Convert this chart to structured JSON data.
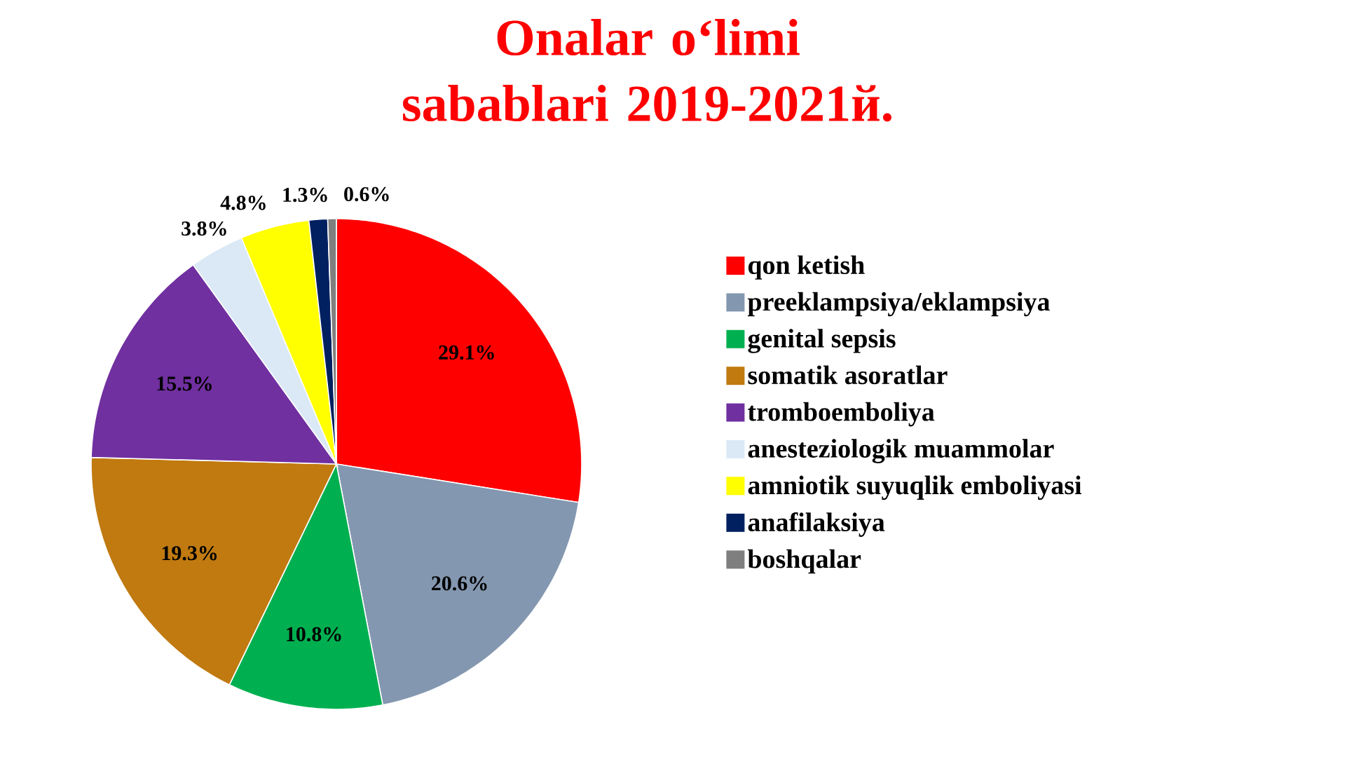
{
  "chart_data": {
    "type": "pie",
    "title": "Onalar o‘limi sabablari 2019-2021й.",
    "categories": [
      "qon ketish",
      "preeklampsiya/eklampsiya",
      "genital sepsis",
      "somatik asoratlar",
      "tromboemboliya",
      "anesteziologik muammolar",
      "amniotik suyuqlik emboliyasi",
      "anafilaksiya",
      "boshqalar"
    ],
    "values": [
      29.1,
      20.6,
      10.8,
      19.3,
      15.5,
      3.8,
      4.8,
      1.3,
      0.6
    ],
    "value_labels": [
      "29.1%",
      "20.6%",
      "10.8%",
      "19.3%",
      "15.5%",
      "3.8%",
      "4.8%",
      "1.3%",
      "0.6%"
    ],
    "colors": [
      "#ff0000",
      "#8497b0",
      "#00b050",
      "#c07a10",
      "#7030a0",
      "#dae9f5",
      "#ffff00",
      "#002060",
      "#7f7f7f"
    ],
    "legend": "right"
  }
}
